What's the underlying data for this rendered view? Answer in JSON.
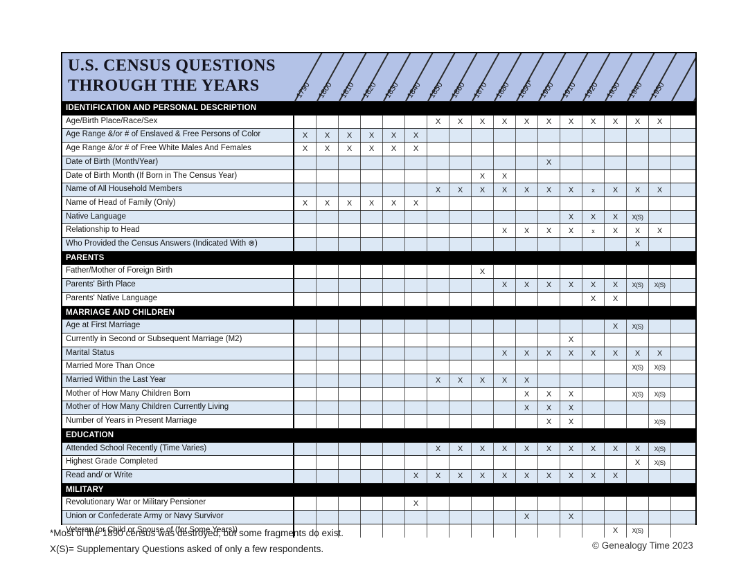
{
  "title": {
    "line1": "U.S. CENSUS QUESTIONS",
    "line2": "THROUGH THE YEARS"
  },
  "years": [
    "1790",
    "1800",
    "1810",
    "1820",
    "1830",
    "1840",
    "1850",
    "1860",
    "1870",
    "1880",
    "1890*",
    "1900",
    "1910",
    "1920",
    "1930",
    "1940",
    "1950"
  ],
  "legend": {
    "x": "X",
    "x_small": "x",
    "supplementary": "X(S)"
  },
  "sections": [
    {
      "header": "IDENTIFICATION AND PERSONAL DESCRIPTION",
      "rows": [
        {
          "question": "Age/Birth Place/Race/Sex",
          "marks": [
            "",
            "",
            "",
            "",
            "",
            "",
            "X",
            "X",
            "X",
            "X",
            "X",
            "X",
            "X",
            "X",
            "X",
            "X",
            "X"
          ]
        },
        {
          "question": "Age Range &/or # of Enslaved & Free Persons of Color",
          "marks": [
            "X",
            "X",
            "X",
            "X",
            "X",
            "X",
            "",
            "",
            "",
            "",
            "",
            "",
            "",
            "",
            "",
            "",
            ""
          ]
        },
        {
          "question": "Age Range &/or # of Free White Males And Females",
          "marks": [
            "X",
            "X",
            "X",
            "X",
            "X",
            "X",
            "",
            "",
            "",
            "",
            "",
            "",
            "",
            "",
            "",
            "",
            ""
          ]
        },
        {
          "question": "Date of Birth (Month/Year)",
          "marks": [
            "",
            "",
            "",
            "",
            "",
            "",
            "",
            "",
            "",
            "",
            "",
            "X",
            "",
            "",
            "",
            "",
            ""
          ]
        },
        {
          "question": "Date of Birth Month (If Born in The Census Year)",
          "marks": [
            "",
            "",
            "",
            "",
            "",
            "",
            "",
            "",
            "X",
            "X",
            "",
            "",
            "",
            "",
            "",
            "",
            ""
          ]
        },
        {
          "question": "Name of All Household Members",
          "marks": [
            "",
            "",
            "",
            "",
            "",
            "",
            "X",
            "X",
            "X",
            "X",
            "X",
            "X",
            "X",
            "x",
            "X",
            "X",
            "X"
          ]
        },
        {
          "question": "Name of Head of Family (Only)",
          "marks": [
            "X",
            "X",
            "X",
            "X",
            "X",
            "X",
            "",
            "",
            "",
            "",
            "",
            "",
            "",
            "",
            "",
            "",
            ""
          ]
        },
        {
          "question": "Native Language",
          "marks": [
            "",
            "",
            "",
            "",
            "",
            "",
            "",
            "",
            "",
            "",
            "",
            "",
            "X",
            "X",
            "X",
            "X(S)",
            ""
          ]
        },
        {
          "question": "Relationship to Head",
          "marks": [
            "",
            "",
            "",
            "",
            "",
            "",
            "",
            "",
            "",
            "X",
            "X",
            "X",
            "X",
            "x",
            "X",
            "X",
            "X"
          ]
        },
        {
          "question": "Who Provided the Census Answers (Indicated With ⊗)",
          "marks": [
            "",
            "",
            "",
            "",
            "",
            "",
            "",
            "",
            "",
            "",
            "",
            "",
            "",
            "",
            "",
            "X",
            ""
          ]
        }
      ]
    },
    {
      "header": "PARENTS",
      "rows": [
        {
          "question": "Father/Mother of Foreign Birth",
          "marks": [
            "",
            "",
            "",
            "",
            "",
            "",
            "",
            "",
            "X",
            "",
            "",
            "",
            "",
            "",
            "",
            "",
            ""
          ]
        },
        {
          "question": "Parents' Birth Place",
          "marks": [
            "",
            "",
            "",
            "",
            "",
            "",
            "",
            "",
            "",
            "X",
            "X",
            "X",
            "X",
            "X",
            "X",
            "X(S)",
            "X(S)"
          ]
        },
        {
          "question": "Parents' Native Language",
          "marks": [
            "",
            "",
            "",
            "",
            "",
            "",
            "",
            "",
            "",
            "",
            "",
            "",
            "",
            "X",
            "X",
            "",
            ""
          ]
        }
      ]
    },
    {
      "header": "MARRIAGE AND CHILDREN",
      "rows": [
        {
          "question": "Age at First Marriage",
          "marks": [
            "",
            "",
            "",
            "",
            "",
            "",
            "",
            "",
            "",
            "",
            "",
            "",
            "",
            "",
            "X",
            "X(S)",
            ""
          ]
        },
        {
          "question": "Currently in Second or Subsequent Marriage (M2)",
          "marks": [
            "",
            "",
            "",
            "",
            "",
            "",
            "",
            "",
            "",
            "",
            "",
            "",
            "X",
            "",
            "",
            "",
            ""
          ]
        },
        {
          "question": "Marital Status",
          "marks": [
            "",
            "",
            "",
            "",
            "",
            "",
            "",
            "",
            "",
            "X",
            "X",
            "X",
            "X",
            "X",
            "X",
            "X",
            "X"
          ]
        },
        {
          "question": "Married More Than Once",
          "marks": [
            "",
            "",
            "",
            "",
            "",
            "",
            "",
            "",
            "",
            "",
            "",
            "",
            "",
            "",
            "",
            "X(S)",
            "X(S)"
          ]
        },
        {
          "question": "Married Within the Last Year",
          "marks": [
            "",
            "",
            "",
            "",
            "",
            "",
            "X",
            "X",
            "X",
            "X",
            "X",
            "",
            "",
            "",
            "",
            "",
            ""
          ]
        },
        {
          "question": "Mother of How Many Children Born",
          "marks": [
            "",
            "",
            "",
            "",
            "",
            "",
            "",
            "",
            "",
            "",
            "X",
            "X",
            "X",
            "",
            "",
            "X(S)",
            "X(S)"
          ]
        },
        {
          "question": "Mother of How Many Children Currently Living",
          "marks": [
            "",
            "",
            "",
            "",
            "",
            "",
            "",
            "",
            "",
            "",
            "X",
            "X",
            "X",
            "",
            "",
            "",
            ""
          ]
        },
        {
          "question": "Number of Years in Present Marriage",
          "marks": [
            "",
            "",
            "",
            "",
            "",
            "",
            "",
            "",
            "",
            "",
            "",
            "X",
            "X",
            "",
            "",
            "",
            "X(S)"
          ]
        }
      ]
    },
    {
      "header": "EDUCATION",
      "rows": [
        {
          "question": "Attended School Recently (Time Varies)",
          "marks": [
            "",
            "",
            "",
            "",
            "",
            "",
            "X",
            "X",
            "X",
            "X",
            "X",
            "X",
            "X",
            "X",
            "X",
            "X",
            "X(S)"
          ]
        },
        {
          "question": "Highest Grade Completed",
          "marks": [
            "",
            "",
            "",
            "",
            "",
            "",
            "",
            "",
            "",
            "",
            "",
            "",
            "",
            "",
            "",
            "X",
            "X(S)"
          ]
        },
        {
          "question": "Read and/ or Write",
          "marks": [
            "",
            "",
            "",
            "",
            "",
            "X",
            "X",
            "X",
            "X",
            "X",
            "X",
            "X",
            "X",
            "X",
            "X",
            "",
            ""
          ]
        }
      ]
    },
    {
      "header": "MILITARY",
      "rows": [
        {
          "question": "Revolutionary War or Military Pensioner",
          "marks": [
            "",
            "",
            "",
            "",
            "",
            "X",
            "",
            "",
            "",
            "",
            "",
            "",
            "",
            "",
            "",
            "",
            ""
          ]
        },
        {
          "question": "Union or Confederate Army or Navy Survivor",
          "marks": [
            "",
            "",
            "",
            "",
            "",
            "",
            "",
            "",
            "",
            "",
            "X",
            "",
            "X",
            "",
            "",
            "",
            ""
          ]
        },
        {
          "question": "Veteran (or Child or Spouse of (for Some Years))",
          "marks": [
            "",
            "",
            "",
            "",
            "",
            "",
            "",
            "",
            "",
            "",
            "",
            "",
            "",
            "",
            "X",
            "X(S)",
            ""
          ]
        }
      ]
    }
  ],
  "footnotes": [
    "*Most of the 1890 census was destroyed, but some fragments do exist.",
    "X(S)= Supplementary Questions asked of only a few respondents."
  ],
  "copyright": "© Genealogy Time 2023",
  "colors": {
    "header_blue": "#b3c2e7",
    "row_blue": "#dce8f5",
    "section_bar": "#000000",
    "grid_line": "#5a5a5a",
    "row_line": "#1c1c1c"
  }
}
